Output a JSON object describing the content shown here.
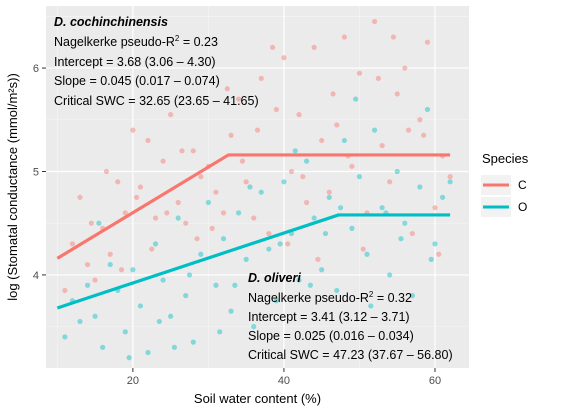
{
  "chart_data": {
    "type": "scatter",
    "title": "",
    "xlabel": "Soil water content (%)",
    "ylabel": "log (Stomatal conductance (mmol/m²s))",
    "xlim": [
      8.5,
      64.5
    ],
    "ylim": [
      3.1,
      6.6
    ],
    "x_ticks": [
      20,
      40,
      60
    ],
    "y_ticks": [
      4,
      5,
      6
    ],
    "grid": true,
    "legend": {
      "title": "Species",
      "position": "right",
      "entries": [
        {
          "label": "C",
          "color": "#F8766D"
        },
        {
          "label": "O",
          "color": "#00BFC4"
        }
      ]
    },
    "annotations": [
      {
        "species": "D. cochinchinensis",
        "r2_label": "Nagelkerke pseudo-R",
        "r2_value": " = 0.23",
        "intercept": "Intercept = 3.68 (3.06 – 4.30)",
        "slope": "Slope = 0.045 (0.017 – 0.074)",
        "critical": "Critical SWC = 32.65 (23.65 – 41.65)"
      },
      {
        "species": "D. oliveri",
        "r2_label": "Nagelkerke pseudo-R",
        "r2_value": " = 0.32",
        "intercept": "Intercept = 3.41 (3.12 – 3.71)",
        "slope": "Slope = 0.025 (0.016 – 0.034)",
        "critical": "Critical SWC = 47.23 (37.67 – 56.80)"
      }
    ],
    "series": [
      {
        "name": "C",
        "color": "#F8766D",
        "fit": {
          "x": [
            10,
            32.65,
            62
          ],
          "y": [
            4.16,
            5.16,
            5.16
          ]
        },
        "points": [
          [
            11,
            3.85
          ],
          [
            12,
            4.3
          ],
          [
            13,
            4.75
          ],
          [
            14,
            4.1
          ],
          [
            15,
            3.95
          ],
          [
            16,
            4.45
          ],
          [
            17,
            4.2
          ],
          [
            18,
            4.9
          ],
          [
            19,
            4.6
          ],
          [
            20,
            5.4
          ],
          [
            21,
            4.85
          ],
          [
            22,
            5.3
          ],
          [
            23,
            4.55
          ],
          [
            24,
            5.1
          ],
          [
            25,
            5.55
          ],
          [
            26,
            4.7
          ],
          [
            27,
            4.5
          ],
          [
            28,
            5.2
          ],
          [
            29,
            4.95
          ],
          [
            30,
            5.05
          ],
          [
            31,
            4.8
          ],
          [
            32,
            4.6
          ],
          [
            33,
            5.35
          ],
          [
            34,
            5.7
          ],
          [
            35,
            4.9
          ],
          [
            36,
            4.55
          ],
          [
            37,
            5.9
          ],
          [
            38,
            4.4
          ],
          [
            39,
            5.6
          ],
          [
            40,
            6.1
          ],
          [
            41,
            5.0
          ],
          [
            42,
            5.55
          ],
          [
            43,
            4.7
          ],
          [
            44,
            6.2
          ],
          [
            45,
            5.3
          ],
          [
            46,
            4.8
          ],
          [
            47,
            5.45
          ],
          [
            48,
            6.3
          ],
          [
            49,
            5.05
          ],
          [
            50,
            5.95
          ],
          [
            51,
            4.6
          ],
          [
            52,
            6.45
          ],
          [
            53,
            5.25
          ],
          [
            54,
            4.9
          ],
          [
            55,
            5.75
          ],
          [
            56,
            6.0
          ],
          [
            57,
            4.4
          ],
          [
            58,
            5.5
          ],
          [
            59,
            6.25
          ],
          [
            60,
            4.65
          ],
          [
            61,
            5.15
          ],
          [
            62,
            4.95
          ],
          [
            14.5,
            4.5
          ],
          [
            18.5,
            4.05
          ],
          [
            22.5,
            4.25
          ],
          [
            26.5,
            5.2
          ],
          [
            30.5,
            4.45
          ],
          [
            34.5,
            5.1
          ],
          [
            38.5,
            6.2
          ],
          [
            42.5,
            4.95
          ],
          [
            46.5,
            5.75
          ],
          [
            50.5,
            4.25
          ],
          [
            54.5,
            6.3
          ],
          [
            58.5,
            5.35
          ],
          [
            20.5,
            4.75
          ],
          [
            28.5,
            4.35
          ],
          [
            36.5,
            5.4
          ],
          [
            44.5,
            4.15
          ],
          [
            52.5,
            5.9
          ],
          [
            60.5,
            4.2
          ],
          [
            16.5,
            5.0
          ],
          [
            24.5,
            4.6
          ],
          [
            32.5,
            5.8
          ],
          [
            40.5,
            4.3
          ],
          [
            48.5,
            5.15
          ],
          [
            56.5,
            5.4
          ]
        ]
      },
      {
        "name": "O",
        "color": "#00BFC4",
        "fit": {
          "x": [
            10,
            47.23,
            62
          ],
          "y": [
            3.68,
            4.58,
            4.58
          ]
        },
        "points": [
          [
            11,
            3.4
          ],
          [
            12,
            3.75
          ],
          [
            13,
            3.55
          ],
          [
            14,
            3.9
          ],
          [
            15,
            3.6
          ],
          [
            16,
            3.3
          ],
          [
            17,
            4.1
          ],
          [
            18,
            3.85
          ],
          [
            19,
            3.45
          ],
          [
            20,
            4.05
          ],
          [
            21,
            3.7
          ],
          [
            22,
            3.25
          ],
          [
            23,
            4.3
          ],
          [
            24,
            3.95
          ],
          [
            25,
            3.6
          ],
          [
            26,
            4.55
          ],
          [
            27,
            3.8
          ],
          [
            28,
            3.35
          ],
          [
            29,
            4.2
          ],
          [
            30,
            4.7
          ],
          [
            31,
            3.9
          ],
          [
            32,
            4.35
          ],
          [
            33,
            3.65
          ],
          [
            34,
            4.6
          ],
          [
            35,
            4.15
          ],
          [
            36,
            3.5
          ],
          [
            37,
            4.8
          ],
          [
            38,
            4.25
          ],
          [
            39,
            3.75
          ],
          [
            40,
            4.9
          ],
          [
            41,
            4.4
          ],
          [
            42,
            3.95
          ],
          [
            43,
            5.1
          ],
          [
            44,
            4.55
          ],
          [
            45,
            4.05
          ],
          [
            46,
            4.75
          ],
          [
            47,
            3.85
          ],
          [
            48,
            5.3
          ],
          [
            49,
            4.45
          ],
          [
            50,
            4.95
          ],
          [
            51,
            4.2
          ],
          [
            52,
            5.4
          ],
          [
            53,
            4.65
          ],
          [
            54,
            4.0
          ],
          [
            55,
            5.0
          ],
          [
            56,
            4.5
          ],
          [
            57,
            3.8
          ],
          [
            58,
            4.85
          ],
          [
            59,
            5.6
          ],
          [
            60,
            4.3
          ],
          [
            61,
            4.75
          ],
          [
            62,
            4.9
          ],
          [
            15.5,
            4.5
          ],
          [
            19.5,
            3.2
          ],
          [
            23.5,
            3.55
          ],
          [
            27.5,
            4.0
          ],
          [
            31.5,
            3.45
          ],
          [
            35.5,
            4.85
          ],
          [
            39.5,
            4.3
          ],
          [
            43.5,
            3.9
          ],
          [
            47.5,
            4.65
          ],
          [
            51.5,
            3.7
          ],
          [
            55.5,
            4.35
          ],
          [
            59.5,
            4.15
          ],
          [
            25.5,
            3.3
          ],
          [
            33.5,
            3.9
          ],
          [
            41.5,
            5.2
          ],
          [
            45.5,
            4.4
          ],
          [
            49.5,
            5.7
          ],
          [
            53.5,
            4.6
          ]
        ]
      }
    ]
  }
}
